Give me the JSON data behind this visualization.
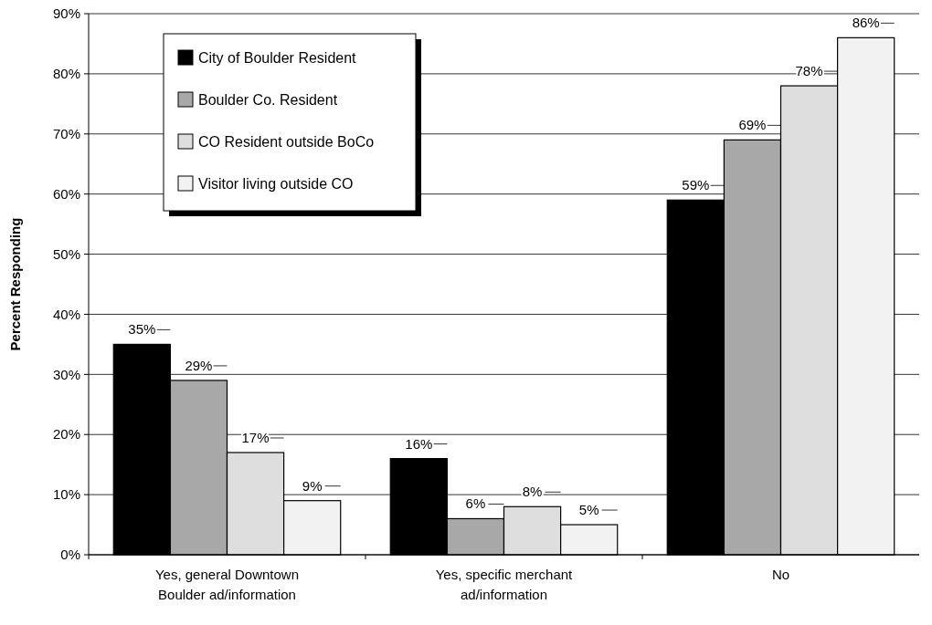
{
  "chart_data": {
    "type": "bar",
    "ylabel": "Percent Responding",
    "categories": [
      "Yes, general Downtown Boulder ad/information",
      "Yes, specific merchant ad/information",
      "No"
    ],
    "series": [
      {
        "name": "City of Boulder Resident",
        "color": "#000000",
        "values": [
          35,
          16,
          59
        ],
        "value_labels": [
          "35%",
          "16%",
          "59%"
        ]
      },
      {
        "name": "Boulder Co. Resident",
        "color": "#a8a8a8",
        "values": [
          29,
          6,
          69
        ],
        "value_labels": [
          "29%",
          "6%",
          "69%"
        ]
      },
      {
        "name": "CO Resident outside BoCo",
        "color": "#dedede",
        "values": [
          17,
          8,
          78
        ],
        "value_labels": [
          "17%",
          "8%",
          "78%"
        ]
      },
      {
        "name": "Visitor living outside CO",
        "color": "#f2f2f2",
        "values": [
          9,
          5,
          86
        ],
        "value_labels": [
          "9%",
          "5%",
          "86%"
        ]
      }
    ],
    "ylim": [
      0,
      90
    ],
    "yticks": [
      {
        "value": 0,
        "label": "0%"
      },
      {
        "value": 10,
        "label": "10%"
      },
      {
        "value": 20,
        "label": "20%"
      },
      {
        "value": 30,
        "label": "30%"
      },
      {
        "value": 40,
        "label": "40%"
      },
      {
        "value": 50,
        "label": "50%"
      },
      {
        "value": 60,
        "label": "60%"
      },
      {
        "value": 70,
        "label": "70%"
      },
      {
        "value": 80,
        "label": "80%"
      },
      {
        "value": 90,
        "label": "90%"
      }
    ],
    "grid": "y",
    "legend": "top left"
  }
}
